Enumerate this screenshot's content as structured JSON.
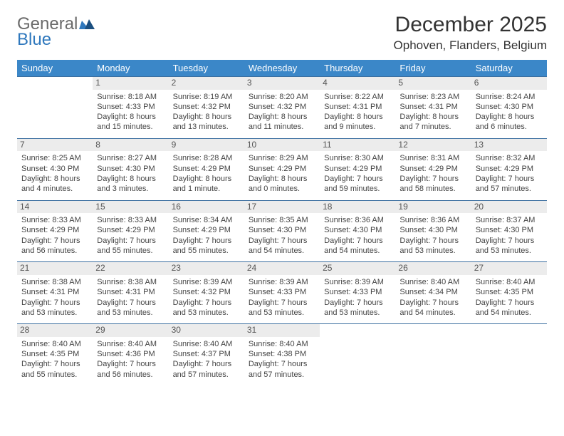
{
  "logo": {
    "general": "General",
    "blue": "Blue"
  },
  "title": "December 2025",
  "location": "Ophoven, Flanders, Belgium",
  "colors": {
    "header_bg": "#3b87c8",
    "header_fg": "#ffffff",
    "row_border": "#3b6fa0",
    "daynum_bg": "#ececec",
    "logo_gray": "#6a6a6a",
    "logo_blue": "#2f78bd"
  },
  "weekdays": [
    "Sunday",
    "Monday",
    "Tuesday",
    "Wednesday",
    "Thursday",
    "Friday",
    "Saturday"
  ],
  "weeks": [
    [
      {
        "day": "",
        "sunrise": "",
        "sunset": "",
        "daylight": ""
      },
      {
        "day": "1",
        "sunrise": "Sunrise: 8:18 AM",
        "sunset": "Sunset: 4:33 PM",
        "daylight": "Daylight: 8 hours and 15 minutes."
      },
      {
        "day": "2",
        "sunrise": "Sunrise: 8:19 AM",
        "sunset": "Sunset: 4:32 PM",
        "daylight": "Daylight: 8 hours and 13 minutes."
      },
      {
        "day": "3",
        "sunrise": "Sunrise: 8:20 AM",
        "sunset": "Sunset: 4:32 PM",
        "daylight": "Daylight: 8 hours and 11 minutes."
      },
      {
        "day": "4",
        "sunrise": "Sunrise: 8:22 AM",
        "sunset": "Sunset: 4:31 PM",
        "daylight": "Daylight: 8 hours and 9 minutes."
      },
      {
        "day": "5",
        "sunrise": "Sunrise: 8:23 AM",
        "sunset": "Sunset: 4:31 PM",
        "daylight": "Daylight: 8 hours and 7 minutes."
      },
      {
        "day": "6",
        "sunrise": "Sunrise: 8:24 AM",
        "sunset": "Sunset: 4:30 PM",
        "daylight": "Daylight: 8 hours and 6 minutes."
      }
    ],
    [
      {
        "day": "7",
        "sunrise": "Sunrise: 8:25 AM",
        "sunset": "Sunset: 4:30 PM",
        "daylight": "Daylight: 8 hours and 4 minutes."
      },
      {
        "day": "8",
        "sunrise": "Sunrise: 8:27 AM",
        "sunset": "Sunset: 4:30 PM",
        "daylight": "Daylight: 8 hours and 3 minutes."
      },
      {
        "day": "9",
        "sunrise": "Sunrise: 8:28 AM",
        "sunset": "Sunset: 4:29 PM",
        "daylight": "Daylight: 8 hours and 1 minute."
      },
      {
        "day": "10",
        "sunrise": "Sunrise: 8:29 AM",
        "sunset": "Sunset: 4:29 PM",
        "daylight": "Daylight: 8 hours and 0 minutes."
      },
      {
        "day": "11",
        "sunrise": "Sunrise: 8:30 AM",
        "sunset": "Sunset: 4:29 PM",
        "daylight": "Daylight: 7 hours and 59 minutes."
      },
      {
        "day": "12",
        "sunrise": "Sunrise: 8:31 AM",
        "sunset": "Sunset: 4:29 PM",
        "daylight": "Daylight: 7 hours and 58 minutes."
      },
      {
        "day": "13",
        "sunrise": "Sunrise: 8:32 AM",
        "sunset": "Sunset: 4:29 PM",
        "daylight": "Daylight: 7 hours and 57 minutes."
      }
    ],
    [
      {
        "day": "14",
        "sunrise": "Sunrise: 8:33 AM",
        "sunset": "Sunset: 4:29 PM",
        "daylight": "Daylight: 7 hours and 56 minutes."
      },
      {
        "day": "15",
        "sunrise": "Sunrise: 8:33 AM",
        "sunset": "Sunset: 4:29 PM",
        "daylight": "Daylight: 7 hours and 55 minutes."
      },
      {
        "day": "16",
        "sunrise": "Sunrise: 8:34 AM",
        "sunset": "Sunset: 4:29 PM",
        "daylight": "Daylight: 7 hours and 55 minutes."
      },
      {
        "day": "17",
        "sunrise": "Sunrise: 8:35 AM",
        "sunset": "Sunset: 4:30 PM",
        "daylight": "Daylight: 7 hours and 54 minutes."
      },
      {
        "day": "18",
        "sunrise": "Sunrise: 8:36 AM",
        "sunset": "Sunset: 4:30 PM",
        "daylight": "Daylight: 7 hours and 54 minutes."
      },
      {
        "day": "19",
        "sunrise": "Sunrise: 8:36 AM",
        "sunset": "Sunset: 4:30 PM",
        "daylight": "Daylight: 7 hours and 53 minutes."
      },
      {
        "day": "20",
        "sunrise": "Sunrise: 8:37 AM",
        "sunset": "Sunset: 4:30 PM",
        "daylight": "Daylight: 7 hours and 53 minutes."
      }
    ],
    [
      {
        "day": "21",
        "sunrise": "Sunrise: 8:38 AM",
        "sunset": "Sunset: 4:31 PM",
        "daylight": "Daylight: 7 hours and 53 minutes."
      },
      {
        "day": "22",
        "sunrise": "Sunrise: 8:38 AM",
        "sunset": "Sunset: 4:31 PM",
        "daylight": "Daylight: 7 hours and 53 minutes."
      },
      {
        "day": "23",
        "sunrise": "Sunrise: 8:39 AM",
        "sunset": "Sunset: 4:32 PM",
        "daylight": "Daylight: 7 hours and 53 minutes."
      },
      {
        "day": "24",
        "sunrise": "Sunrise: 8:39 AM",
        "sunset": "Sunset: 4:33 PM",
        "daylight": "Daylight: 7 hours and 53 minutes."
      },
      {
        "day": "25",
        "sunrise": "Sunrise: 8:39 AM",
        "sunset": "Sunset: 4:33 PM",
        "daylight": "Daylight: 7 hours and 53 minutes."
      },
      {
        "day": "26",
        "sunrise": "Sunrise: 8:40 AM",
        "sunset": "Sunset: 4:34 PM",
        "daylight": "Daylight: 7 hours and 54 minutes."
      },
      {
        "day": "27",
        "sunrise": "Sunrise: 8:40 AM",
        "sunset": "Sunset: 4:35 PM",
        "daylight": "Daylight: 7 hours and 54 minutes."
      }
    ],
    [
      {
        "day": "28",
        "sunrise": "Sunrise: 8:40 AM",
        "sunset": "Sunset: 4:35 PM",
        "daylight": "Daylight: 7 hours and 55 minutes."
      },
      {
        "day": "29",
        "sunrise": "Sunrise: 8:40 AM",
        "sunset": "Sunset: 4:36 PM",
        "daylight": "Daylight: 7 hours and 56 minutes."
      },
      {
        "day": "30",
        "sunrise": "Sunrise: 8:40 AM",
        "sunset": "Sunset: 4:37 PM",
        "daylight": "Daylight: 7 hours and 57 minutes."
      },
      {
        "day": "31",
        "sunrise": "Sunrise: 8:40 AM",
        "sunset": "Sunset: 4:38 PM",
        "daylight": "Daylight: 7 hours and 57 minutes."
      },
      {
        "day": "",
        "sunrise": "",
        "sunset": "",
        "daylight": ""
      },
      {
        "day": "",
        "sunrise": "",
        "sunset": "",
        "daylight": ""
      },
      {
        "day": "",
        "sunrise": "",
        "sunset": "",
        "daylight": ""
      }
    ]
  ]
}
